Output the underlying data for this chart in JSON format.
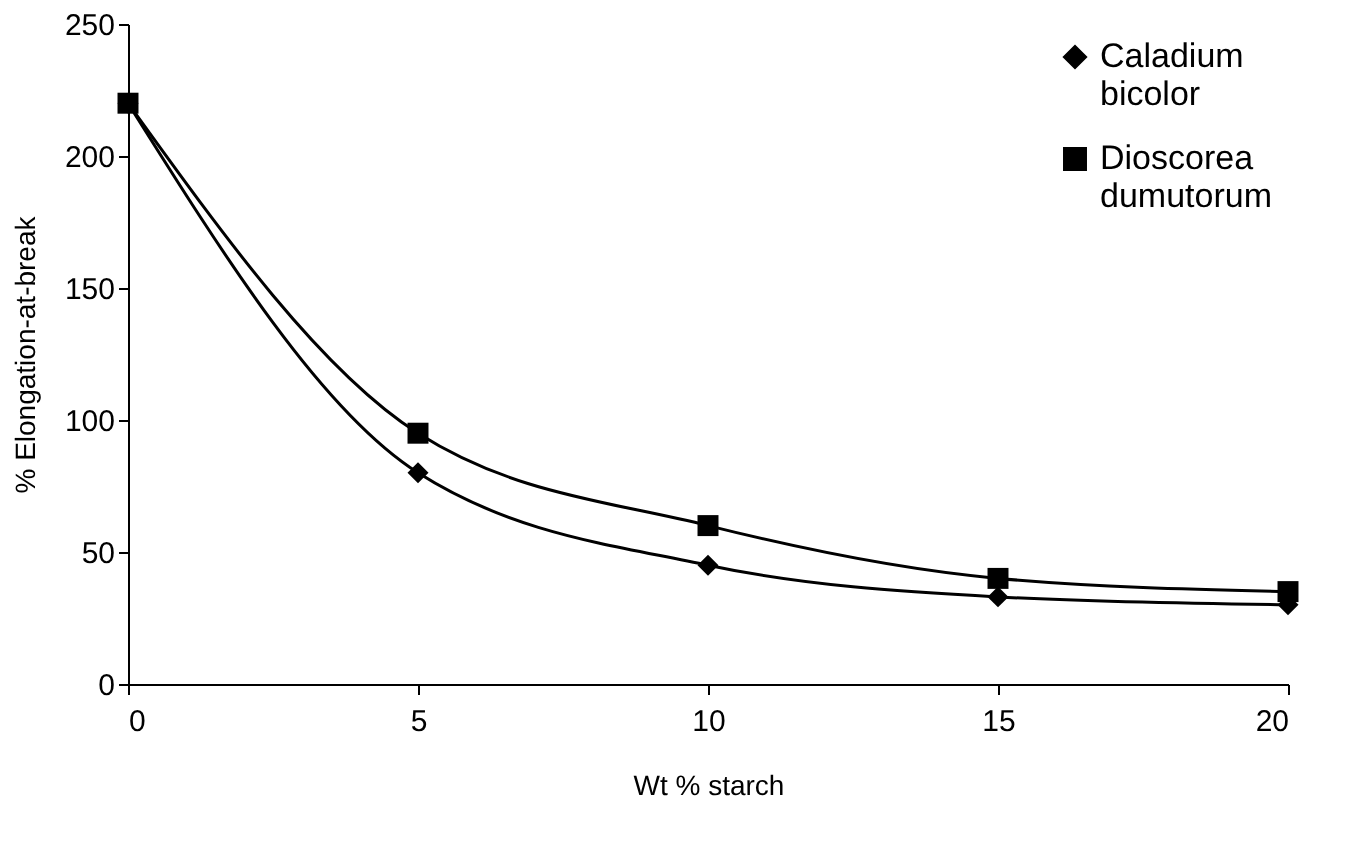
{
  "chart_data": {
    "type": "line",
    "xlabel": "Wt %  starch",
    "ylabel": "% Elongation-at-break",
    "x": [
      0,
      5,
      10,
      15,
      20
    ],
    "series": [
      {
        "name": "Caladium bicolor",
        "color": "#000000",
        "marker": "diamond",
        "values": [
          220,
          80,
          45,
          33,
          30
        ]
      },
      {
        "name": "Dioscorea dumutorum",
        "color": "#000000",
        "marker": "square",
        "values": [
          220,
          95,
          60,
          40,
          35
        ]
      }
    ],
    "xlim": [
      0,
      20
    ],
    "xticks": [
      0,
      5,
      10,
      15,
      20
    ],
    "ylim": [
      0,
      250
    ],
    "yticks": [
      0,
      50,
      100,
      150,
      200,
      250
    ],
    "grid": false,
    "legend": "top right",
    "line_style": "solid"
  }
}
